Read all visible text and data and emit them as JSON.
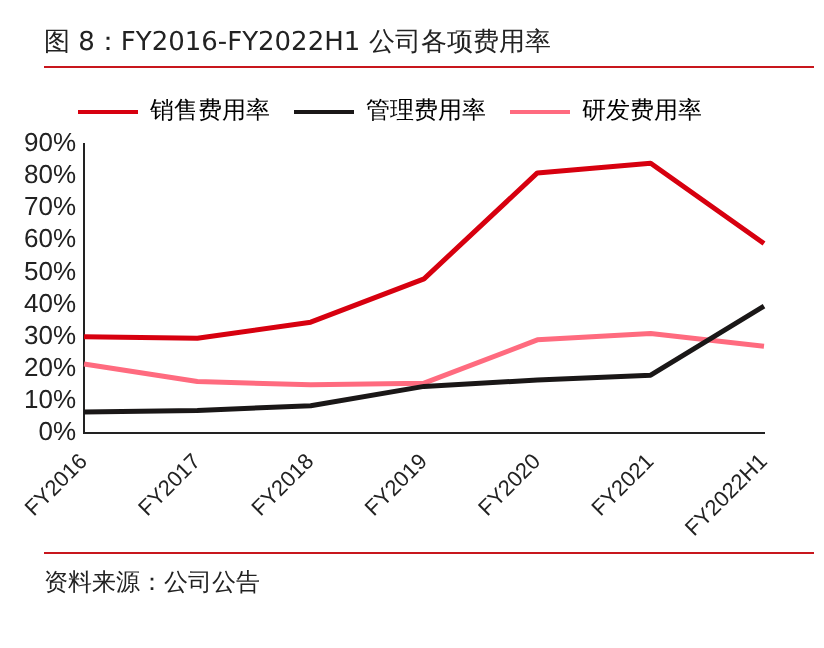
{
  "chart_data": {
    "type": "line",
    "title": "图 8：FY2016-FY2022H1 公司各项费用率",
    "categories": [
      "FY2016",
      "FY2017",
      "FY2018",
      "FY2019",
      "FY2020",
      "FY2021",
      "FY2022H1"
    ],
    "series": [
      {
        "name": "销售费用率",
        "color": "#d7000f",
        "values": [
          30,
          29.5,
          34.5,
          48,
          81,
          84,
          59
        ]
      },
      {
        "name": "管理费用率",
        "color": "#1a1717",
        "values": [
          6.5,
          7,
          8.5,
          14.5,
          16.5,
          18,
          39.5
        ]
      },
      {
        "name": "研发费用率",
        "color": "#ff6b7f",
        "values": [
          21.5,
          16,
          15,
          15.5,
          29,
          31,
          27
        ]
      }
    ],
    "ylim": [
      0,
      90
    ],
    "yticks": [
      {
        "value": 0,
        "label": "0%"
      },
      {
        "value": 10,
        "label": "10%"
      },
      {
        "value": 20,
        "label": "20%"
      },
      {
        "value": 30,
        "label": "30%"
      },
      {
        "value": 40,
        "label": "40%"
      },
      {
        "value": 50,
        "label": "50%"
      },
      {
        "value": 60,
        "label": "60%"
      },
      {
        "value": 70,
        "label": "70%"
      },
      {
        "value": 80,
        "label": "80%"
      },
      {
        "value": 90,
        "label": "90%"
      }
    ],
    "grid": false,
    "legend": "top",
    "marker": "none",
    "line_style": "solid",
    "annotations": [
      "资料来源：公司公告"
    ]
  }
}
